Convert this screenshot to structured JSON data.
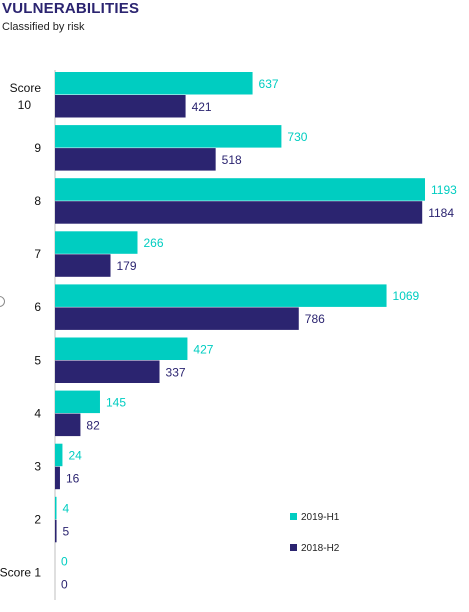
{
  "header": {
    "title": "VULNERABILITIES",
    "subtitle": "Classified by risk"
  },
  "chart_data": {
    "type": "bar",
    "orientation": "horizontal",
    "title": "VULNERABILITIES",
    "subtitle": "Classified by risk",
    "categories": [
      "Score 10",
      "9",
      "8",
      "7",
      "6",
      "5",
      "4",
      "3",
      "2",
      "Score 1"
    ],
    "series": [
      {
        "name": "2019-H1",
        "color": "#00cdc1",
        "values": [
          637,
          730,
          1193,
          266,
          1069,
          427,
          145,
          24,
          4,
          0
        ]
      },
      {
        "name": "2018-H2",
        "color": "#2b2470",
        "values": [
          421,
          518,
          1184,
          179,
          786,
          337,
          82,
          16,
          5,
          0
        ]
      }
    ],
    "xlim": [
      0,
      1193
    ],
    "grid": false,
    "data_labels": true,
    "legend_position": "bottom-right"
  }
}
